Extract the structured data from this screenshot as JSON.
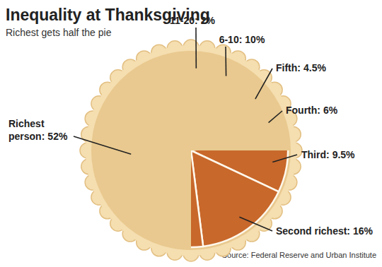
{
  "chart_data": {
    "type": "pie",
    "title": "Inequality at Thanksgiving",
    "subtitle": "Richest gets half the pie",
    "annotations": [
      "Source: Federal Reserve and Urban Institute"
    ],
    "categories": [
      "11-20:",
      "6-10:",
      "Fifth:",
      "Fourth:",
      "Third:",
      "Second richest:",
      "Richest person:"
    ],
    "values": [
      2,
      10,
      4.5,
      6,
      9.5,
      16,
      52
    ],
    "value_labels": [
      "2%",
      "10%",
      "4.5%",
      "6%",
      "9.5%",
      "16%",
      "52%"
    ],
    "color": "#c8682b",
    "data_labels": true
  }
}
